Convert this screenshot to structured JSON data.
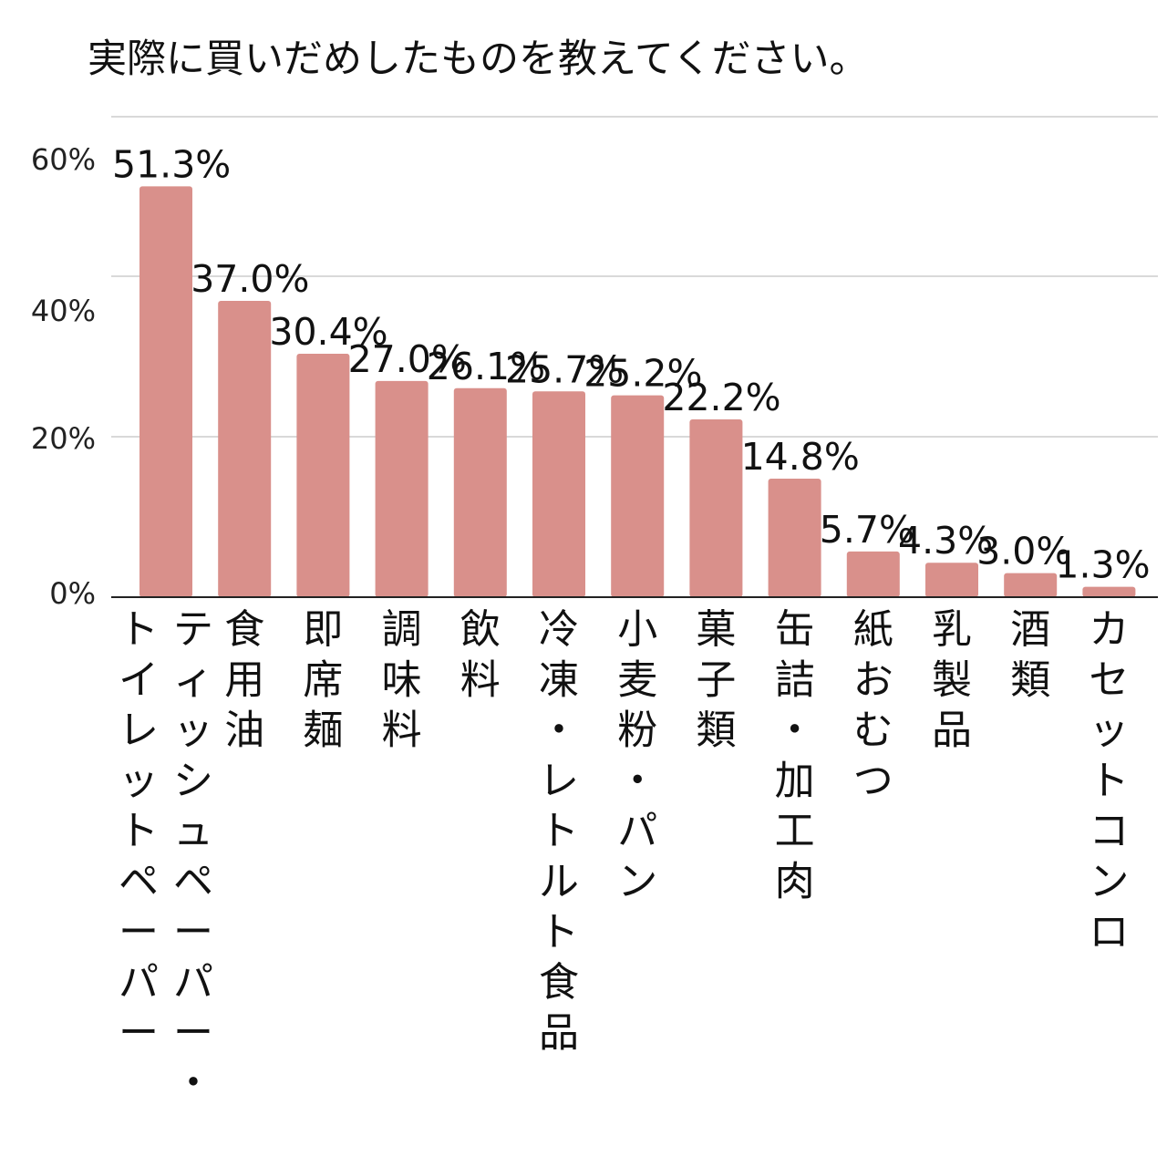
{
  "chart_data": {
    "type": "bar",
    "title": "実際に買いだめしたものを教えてください。",
    "categories": [
      "ティッシュペーパー・トイレットペーパー",
      "食用油",
      "即席麺",
      "調味料",
      "飲料",
      "冷凍・レトルト食品",
      "小麦粉・パン",
      "菓子類",
      "缶詰・加工肉",
      "紙おむつ",
      "乳製品",
      "酒類",
      "カセットコンロ"
    ],
    "category_lines": [
      [
        "ティッシュペーパー・",
        "トイレットペーパー"
      ],
      [
        "食用油"
      ],
      [
        "即席麺"
      ],
      [
        "調味料"
      ],
      [
        "飲料"
      ],
      [
        "冷凍・レトルト食品"
      ],
      [
        "小麦粉・パン"
      ],
      [
        "菓子類"
      ],
      [
        "缶詰・加工肉"
      ],
      [
        "紙おむつ"
      ],
      [
        "乳製品"
      ],
      [
        "酒類"
      ],
      [
        "カセットコンロ"
      ]
    ],
    "values": [
      51.3,
      37.0,
      30.4,
      27.0,
      26.1,
      25.7,
      25.2,
      22.2,
      14.8,
      5.7,
      4.3,
      3.0,
      1.3
    ],
    "value_labels": [
      "51.3%",
      "37.0%",
      "30.4%",
      "27.0%",
      "26.1%",
      "25.7%",
      "25.2%",
      "22.2%",
      "14.8%",
      "5.7%",
      "4.3%",
      "3.0%",
      "1.3%"
    ],
    "yticks": [
      0,
      20,
      40,
      60
    ],
    "ytick_labels": [
      "0%",
      "20%",
      "40%",
      "60%"
    ],
    "ylim": [
      0,
      60
    ],
    "grid": true,
    "xlabel": "",
    "ylabel": "",
    "bar_color": "#d9908b",
    "grid_color": "#d9d9d9",
    "axis_color": "#222222"
  }
}
